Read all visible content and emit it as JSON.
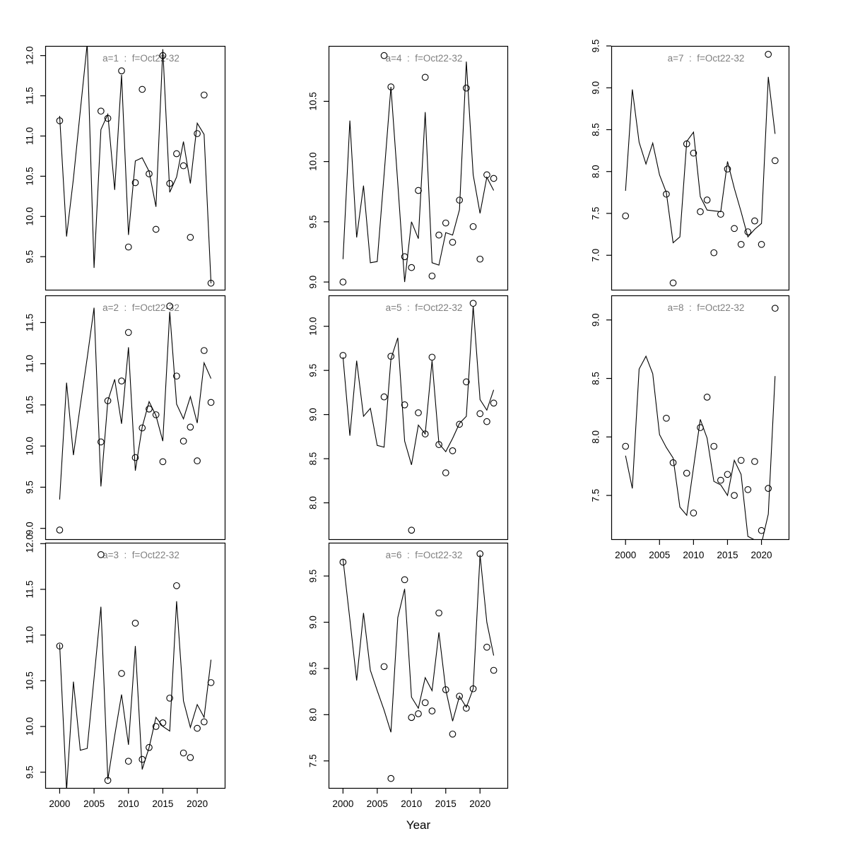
{
  "figure": {
    "xlabel": "Year",
    "x_ticks": [
      2000,
      2005,
      2010,
      2015,
      2020
    ],
    "xlim": [
      1997.9,
      2024.1
    ],
    "years": [
      2000,
      2001,
      2002,
      2003,
      2004,
      2005,
      2006,
      2007,
      2008,
      2009,
      2010,
      2011,
      2012,
      2013,
      2014,
      2015,
      2016,
      2017,
      2018,
      2019,
      2020,
      2021,
      2022
    ],
    "point_years": [
      2000,
      2006,
      2007,
      2009,
      2010,
      2011,
      2012,
      2013,
      2014,
      2015,
      2016,
      2017,
      2018,
      2019,
      2020,
      2021,
      2022
    ],
    "colors": {
      "line": "#000000",
      "point": "#000000",
      "box": "#000000",
      "title": "#7f7f7f",
      "tick_label": "#000000"
    }
  },
  "chart_data": [
    {
      "type": "line",
      "a": 1,
      "title": "a=1  :  f=Oct22-32",
      "row": 0,
      "col": 0,
      "show_xaxis": false,
      "ylim": [
        9.08,
        12.12
      ],
      "yticks": [
        9.5,
        10.0,
        10.5,
        11.0,
        11.5,
        12.0
      ],
      "line": [
        11.25,
        9.75,
        10.47,
        11.31,
        12.15,
        9.36,
        11.08,
        11.27,
        10.33,
        11.76,
        9.77,
        10.69,
        10.73,
        10.56,
        10.12,
        12.08,
        10.3,
        10.49,
        10.93,
        10.41,
        11.16,
        11.02,
        9.17
      ],
      "points": [
        11.19,
        11.31,
        11.22,
        11.81,
        9.62,
        10.42,
        11.58,
        10.53,
        9.84,
        12.0,
        10.41,
        10.78,
        10.63,
        9.74,
        11.03,
        11.51,
        9.17
      ]
    },
    {
      "type": "line",
      "a": 2,
      "title": "a=2  :  f=Oct22-32",
      "row": 1,
      "col": 0,
      "show_xaxis": false,
      "ylim": [
        8.86,
        11.83
      ],
      "yticks": [
        9.0,
        9.5,
        10.0,
        10.5,
        11.0,
        11.5
      ],
      "line": [
        9.35,
        10.77,
        9.89,
        10.49,
        11.07,
        11.68,
        9.51,
        10.55,
        10.81,
        10.27,
        11.2,
        9.7,
        10.23,
        10.54,
        10.37,
        10.06,
        11.63,
        10.51,
        10.33,
        10.6,
        10.28,
        11.01,
        10.82
      ],
      "points": [
        8.98,
        10.05,
        10.55,
        10.79,
        11.38,
        9.86,
        10.22,
        10.45,
        10.38,
        9.81,
        11.7,
        10.85,
        10.06,
        10.23,
        9.82,
        11.16,
        10.53
      ]
    },
    {
      "type": "line",
      "a": 3,
      "title": "a=3  :  f=Oct22-32",
      "row": 2,
      "col": 0,
      "show_xaxis": true,
      "ylim": [
        9.32,
        12.01
      ],
      "yticks": [
        9.5,
        10.0,
        10.5,
        11.0,
        11.5,
        12.0
      ],
      "line": [
        10.9,
        9.3,
        10.49,
        9.74,
        9.76,
        10.53,
        11.31,
        9.42,
        9.9,
        10.35,
        9.8,
        10.88,
        9.53,
        9.77,
        10.1,
        10.0,
        9.95,
        11.37,
        10.28,
        9.99,
        10.24,
        10.1,
        10.73
      ],
      "points": [
        10.88,
        11.88,
        9.41,
        10.58,
        9.62,
        11.13,
        9.64,
        9.77,
        10.0,
        10.04,
        10.31,
        11.54,
        9.71,
        9.66,
        9.98,
        10.05,
        10.48
      ]
    },
    {
      "type": "line",
      "a": 4,
      "title": "a=4  :  f=Oct22-32",
      "row": 0,
      "col": 1,
      "show_xaxis": false,
      "ylim": [
        8.93,
        10.96
      ],
      "yticks": [
        9.0,
        9.5,
        10.0,
        10.5
      ],
      "line": [
        9.19,
        10.34,
        9.37,
        9.8,
        9.16,
        9.17,
        9.89,
        10.62,
        9.82,
        9.0,
        9.5,
        9.36,
        10.41,
        9.16,
        9.14,
        9.41,
        9.39,
        9.6,
        10.83,
        9.89,
        9.57,
        9.87,
        9.76
      ],
      "points": [
        9.0,
        10.88,
        10.62,
        9.21,
        9.12,
        9.76,
        10.7,
        9.05,
        9.39,
        9.49,
        9.33,
        9.68,
        10.61,
        9.46,
        9.19,
        9.89,
        9.86
      ]
    },
    {
      "type": "line",
      "a": 5,
      "title": "a=5  :  f=Oct22-32",
      "row": 1,
      "col": 1,
      "show_xaxis": false,
      "ylim": [
        7.58,
        10.35
      ],
      "yticks": [
        8.0,
        8.5,
        9.0,
        9.5,
        10.0
      ],
      "line": [
        9.65,
        8.76,
        9.61,
        8.98,
        9.07,
        8.65,
        8.63,
        9.63,
        9.87,
        8.7,
        8.43,
        8.88,
        8.78,
        9.61,
        8.67,
        8.58,
        8.73,
        8.9,
        8.98,
        10.23,
        9.17,
        9.05,
        9.28
      ],
      "points": [
        9.67,
        9.2,
        9.66,
        9.11,
        7.69,
        9.02,
        8.78,
        9.65,
        8.66,
        8.34,
        8.59,
        8.89,
        9.37,
        10.26,
        9.01,
        8.92,
        9.13
      ]
    },
    {
      "type": "line",
      "a": 6,
      "title": "a=6  :  f=Oct22-32",
      "row": 2,
      "col": 1,
      "show_xaxis": true,
      "ylim": [
        7.2,
        9.86
      ],
      "yticks": [
        7.5,
        8.0,
        8.5,
        9.0,
        9.5
      ],
      "line": [
        9.68,
        9.03,
        8.37,
        9.1,
        8.48,
        8.26,
        8.05,
        7.81,
        9.05,
        9.36,
        8.19,
        8.07,
        8.4,
        8.26,
        8.89,
        8.27,
        7.93,
        8.2,
        8.08,
        8.28,
        9.73,
        9.0,
        8.64
      ],
      "points": [
        9.65,
        8.52,
        7.31,
        9.46,
        7.97,
        8.01,
        8.13,
        8.04,
        9.1,
        8.27,
        7.79,
        8.2,
        8.07,
        8.28,
        9.74,
        8.73,
        8.48
      ]
    },
    {
      "type": "line",
      "a": 7,
      "title": "a=7  :  f=Oct22-32",
      "row": 0,
      "col": 2,
      "show_xaxis": false,
      "ylim": [
        6.58,
        9.5
      ],
      "yticks": [
        7.0,
        7.5,
        8.0,
        8.5,
        9.0,
        9.5
      ],
      "line": [
        7.77,
        8.98,
        8.35,
        8.09,
        8.34,
        7.96,
        7.75,
        7.15,
        7.22,
        8.36,
        8.47,
        7.7,
        7.54,
        7.53,
        7.52,
        8.12,
        7.8,
        7.52,
        7.22,
        7.31,
        7.38,
        9.13,
        8.45
      ],
      "points": [
        7.47,
        7.73,
        6.67,
        8.33,
        8.22,
        7.52,
        7.66,
        7.03,
        7.49,
        8.03,
        7.32,
        7.13,
        7.28,
        7.41,
        7.13,
        9.4,
        8.13
      ]
    },
    {
      "type": "line",
      "a": 8,
      "title": "a=8  :  f=Oct22-32",
      "row": 1,
      "col": 2,
      "show_xaxis": true,
      "ylim": [
        7.12,
        9.21
      ],
      "yticks": [
        7.5,
        8.0,
        8.5,
        9.0
      ],
      "line": [
        7.84,
        7.56,
        8.58,
        8.69,
        8.54,
        8.02,
        7.91,
        7.82,
        7.4,
        7.33,
        7.74,
        8.15,
        7.99,
        7.62,
        7.59,
        7.5,
        7.8,
        7.68,
        7.15,
        7.12,
        7.09,
        7.34,
        8.52
      ],
      "points": [
        7.92,
        8.16,
        7.78,
        7.69,
        7.35,
        8.08,
        8.34,
        7.92,
        7.63,
        7.68,
        7.5,
        7.8,
        7.55,
        7.79,
        7.2,
        7.56,
        9.1
      ]
    }
  ]
}
